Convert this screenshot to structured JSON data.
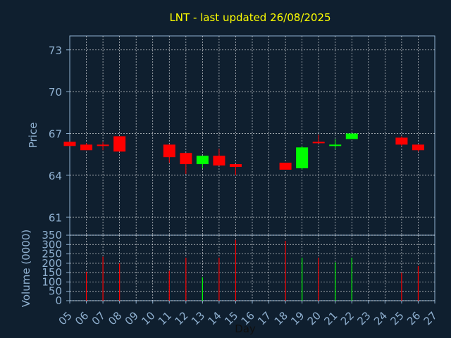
{
  "chart_data": [
    {
      "type": "candlestick",
      "title": "LNT - last updated 26/08/2025",
      "ylabel": "Price",
      "xlabel": "Day",
      "ylim": [
        59.7,
        74.0
      ],
      "yticks": [
        "61",
        "64",
        "67",
        "70",
        "73"
      ],
      "grid": true,
      "colors": {
        "up": "#00ff00",
        "down": "#ff0000",
        "title": "#ffff00",
        "labels": "#8fb0d0",
        "axis": "#8fb0d0",
        "grid": "#ffffff",
        "background": "#0f1f2f"
      },
      "candles": [
        {
          "day": "05",
          "open": 66.4,
          "high": 66.4,
          "low": 66.1,
          "close": 66.1
        },
        {
          "day": "06",
          "open": 66.2,
          "high": 66.3,
          "low": 65.8,
          "close": 65.8
        },
        {
          "day": "07",
          "open": 66.2,
          "high": 66.4,
          "low": 65.8,
          "close": 66.1
        },
        {
          "day": "08",
          "open": 66.8,
          "high": 66.8,
          "low": 65.7,
          "close": 65.7
        },
        {
          "day": "11",
          "open": 66.2,
          "high": 66.2,
          "low": 64.9,
          "close": 65.3
        },
        {
          "day": "12",
          "open": 65.6,
          "high": 65.6,
          "low": 64.1,
          "close": 64.8
        },
        {
          "day": "13",
          "open": 64.8,
          "high": 65.4,
          "low": 64.5,
          "close": 65.4
        },
        {
          "day": "14",
          "open": 65.4,
          "high": 65.9,
          "low": 64.7,
          "close": 64.7
        },
        {
          "day": "15",
          "open": 64.8,
          "high": 64.8,
          "low": 64.0,
          "close": 64.6
        },
        {
          "day": "18",
          "open": 64.9,
          "high": 64.9,
          "low": 64.4,
          "close": 64.4
        },
        {
          "day": "19",
          "open": 64.5,
          "high": 66.1,
          "low": 64.4,
          "close": 66.0
        },
        {
          "day": "20",
          "open": 66.4,
          "high": 66.9,
          "low": 66.3,
          "close": 66.3
        },
        {
          "day": "21",
          "open": 66.1,
          "high": 66.6,
          "low": 65.9,
          "close": 66.2
        },
        {
          "day": "22",
          "open": 66.6,
          "high": 67.0,
          "low": 66.6,
          "close": 67.0
        },
        {
          "day": "25",
          "open": 66.7,
          "high": 66.8,
          "low": 66.1,
          "close": 66.2
        },
        {
          "day": "26",
          "open": 66.2,
          "high": 66.2,
          "low": 65.7,
          "close": 65.8
        }
      ]
    },
    {
      "type": "bar",
      "ylabel": "Volume (0000)",
      "xlabel": "Day",
      "ylim": [
        0,
        350
      ],
      "yticks": [
        "0",
        "50",
        "100",
        "150",
        "200",
        "250",
        "300",
        "350"
      ],
      "categories": [
        "05",
        "06",
        "07",
        "08",
        "09",
        "10",
        "11",
        "12",
        "13",
        "14",
        "15",
        "16",
        "17",
        "18",
        "19",
        "20",
        "21",
        "22",
        "23",
        "24",
        "25",
        "26",
        "27"
      ],
      "values": [
        null,
        155,
        235,
        200,
        null,
        null,
        160,
        230,
        125,
        230,
        325,
        null,
        null,
        320,
        230,
        230,
        205,
        230,
        null,
        null,
        150,
        185,
        null
      ],
      "direction": [
        null,
        "down",
        "down",
        "down",
        null,
        null,
        "down",
        "down",
        "up",
        "down",
        "down",
        null,
        null,
        "down",
        "up",
        "down",
        "up",
        "up",
        null,
        null,
        "down",
        "down",
        null
      ]
    }
  ]
}
